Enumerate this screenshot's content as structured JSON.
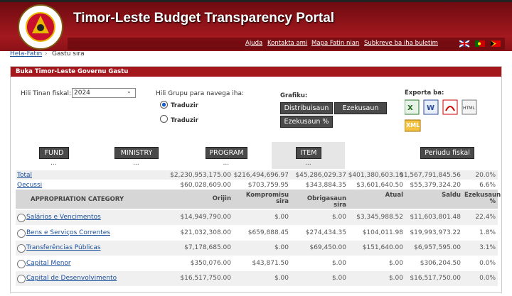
{
  "header": {
    "title": "Timor-Leste Budget Transparency Portal",
    "nav": [
      "Ajuda",
      "Kontakta ami",
      "Mapa Fatin nian",
      "Subkreve ba iha buletim"
    ]
  },
  "breadcrumb": [
    "Hela-Fatin",
    "Gastu sira"
  ],
  "panel": {
    "title": "Buka Timor-Leste Governu Gastu",
    "year": {
      "label": "Hili Tinan fiskal:",
      "value": "2024"
    },
    "group": {
      "label": "Hili Grupu para navega iha:",
      "options": [
        "Traduzir",
        "Traduzir"
      ]
    },
    "chart": {
      "label": "Grafiku:",
      "buttons": [
        "Distribuisaun",
        "Ezekusaun",
        "Ezekusaun %"
      ]
    },
    "export": {
      "label": "Exporta ba:",
      "xml": "XML"
    },
    "tabs": [
      {
        "label": "FUND",
        "sub": "..."
      },
      {
        "label": "MINISTRY",
        "sub": "..."
      },
      {
        "label": "PROGRAM",
        "sub": "..."
      },
      {
        "label": "ITEM",
        "sub": "..."
      },
      {
        "label": "Periudu fiskal"
      }
    ]
  },
  "summary": [
    [
      "Total",
      "$2,230,953,175.00",
      "$216,494,696.97",
      "$45,286,029.37",
      "$401,380,603.10",
      "$1,567,791,845.56",
      "20.0%"
    ],
    [
      "Oecussi",
      "$60,028,609.00",
      "$703,759.95",
      "$343,884.35",
      "$3,601,640.50",
      "$55,379,324.20",
      "6.6%"
    ]
  ],
  "table": {
    "headers": [
      "APPROPRIATION CATEGORY",
      "Orijin",
      "Kompromisu sira",
      "Obrigasaun sira",
      "Atual",
      "Saldu",
      "Ezekusaun %"
    ],
    "rows": [
      [
        "Salários e Vencimentos",
        "$14,949,790.00",
        "$.00",
        "$.00",
        "$3,345,988.52",
        "$11,603,801.48",
        "22.4%"
      ],
      [
        "Bens e Serviços Correntes",
        "$21,032,308.00",
        "$659,888.45",
        "$274,434.35",
        "$104,011.98",
        "$19,993,973.22",
        "1.8%"
      ],
      [
        "Transferências Públicas",
        "$7,178,685.00",
        "$.00",
        "$69,450.00",
        "$151,640.00",
        "$6,957,595.00",
        "3.1%"
      ],
      [
        "Capital Menor",
        "$350,076.00",
        "$43,871.50",
        "$.00",
        "$.00",
        "$306,204.50",
        "0.0%"
      ],
      [
        "Capital de Desenvolvimento",
        "$16,517,750.00",
        "$.00",
        "$.00",
        "$.00",
        "$16,517,750.00",
        "0.0%"
      ]
    ]
  }
}
